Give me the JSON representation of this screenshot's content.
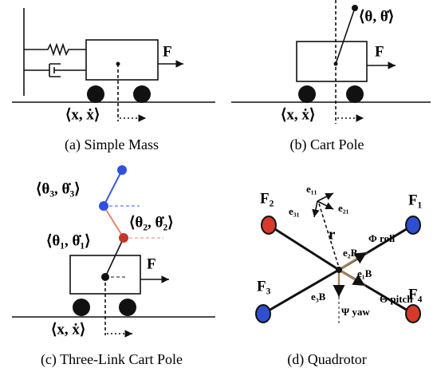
{
  "panels": [
    {
      "caption": "(a) Simple Mass",
      "labels": [
        "F",
        "⟨x, ẋ⟩"
      ]
    },
    {
      "caption": "(b) Cart Pole",
      "labels": [
        "⟨θ, θ̇⟩",
        "F",
        "⟨x, ẋ⟩"
      ]
    },
    {
      "caption": "(c) Three-Link Cart Pole",
      "labels": [
        "⟨θ₃, θ̇₃⟩",
        "⟨θ₂, θ̇₂⟩",
        "⟨θ₁, θ̇₁⟩",
        "F",
        "⟨x, ẋ⟩"
      ]
    },
    {
      "caption": "(d) Quadrotor",
      "labels": [
        "F₂",
        "F₁",
        "F₃",
        "F₄",
        "e₁₁",
        "e₃₁",
        "e₂₁",
        "r",
        "e₂B",
        "Φ roll",
        "e₁B",
        "Θ pitch",
        "e₃B",
        "Ψ yaw"
      ]
    }
  ]
}
